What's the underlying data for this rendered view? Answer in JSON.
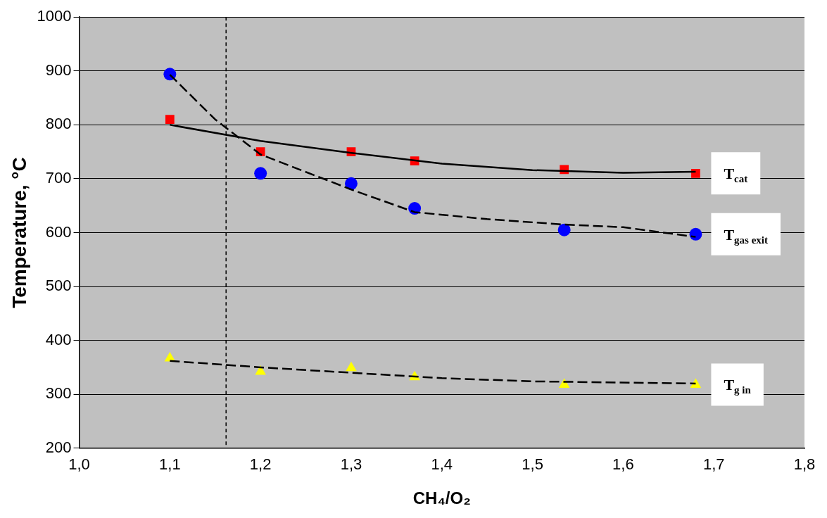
{
  "chart_data": {
    "type": "scatter",
    "xlabel": "CH₄/O₂",
    "ylabel": "Temperature, °C",
    "xlim": [
      1.0,
      1.8
    ],
    "xticks": [
      {
        "value": 1.0,
        "label": "1,0"
      },
      {
        "value": 1.1,
        "label": "1,1"
      },
      {
        "value": 1.2,
        "label": "1,2"
      },
      {
        "value": 1.3,
        "label": "1,3"
      },
      {
        "value": 1.4,
        "label": "1,4"
      },
      {
        "value": 1.5,
        "label": "1,5"
      },
      {
        "value": 1.6,
        "label": "1,6"
      },
      {
        "value": 1.7,
        "label": "1,7"
      },
      {
        "value": 1.8,
        "label": "1,8"
      }
    ],
    "ylim": [
      200,
      1000
    ],
    "yticks": [
      200,
      300,
      400,
      500,
      600,
      700,
      800,
      900,
      1000
    ],
    "grid": "y",
    "legend": false,
    "x": [
      1.1,
      1.2,
      1.3,
      1.37,
      1.535,
      1.68
    ],
    "series": [
      {
        "name": "T$_{cat}$",
        "color": "#ff0000",
        "marker": "square",
        "values": [
          810,
          750,
          750,
          733,
          717,
          710
        ]
      },
      {
        "name": "T$_{gas exit}$",
        "color": "#0000ff",
        "marker": "circle",
        "values": [
          894,
          710,
          691,
          645,
          605,
          597
        ]
      },
      {
        "name": "T$_{g in}$",
        "color": "#ffff00",
        "marker": "triangle",
        "values": [
          367,
          342,
          349,
          332,
          318,
          318
        ]
      },
      {
        "type": "line",
        "color": "#000000",
        "marker": "none",
        "line_style": "solid",
        "x": [
          1.1,
          1.2,
          1.3,
          1.4,
          1.5,
          1.6,
          1.68
        ],
        "values": [
          800,
          770,
          748,
          728,
          716,
          711,
          713
        ]
      },
      {
        "type": "line",
        "color": "#000000",
        "marker": "none",
        "line_style": "dashed",
        "x": [
          1.1,
          1.15,
          1.2,
          1.3,
          1.37,
          1.45,
          1.535,
          1.6,
          1.68
        ],
        "values": [
          893,
          810,
          745,
          680,
          638,
          625,
          615,
          610,
          592
        ]
      },
      {
        "type": "line",
        "color": "#000000",
        "marker": "none",
        "line_style": "dashed",
        "x": [
          1.1,
          1.2,
          1.3,
          1.4,
          1.5,
          1.68
        ],
        "values": [
          362,
          350,
          340,
          330,
          324,
          320
        ]
      }
    ],
    "ref_lines": [
      {
        "axis": "x",
        "value": 1.162,
        "color": "#000000",
        "line_style": "dashed"
      }
    ]
  }
}
